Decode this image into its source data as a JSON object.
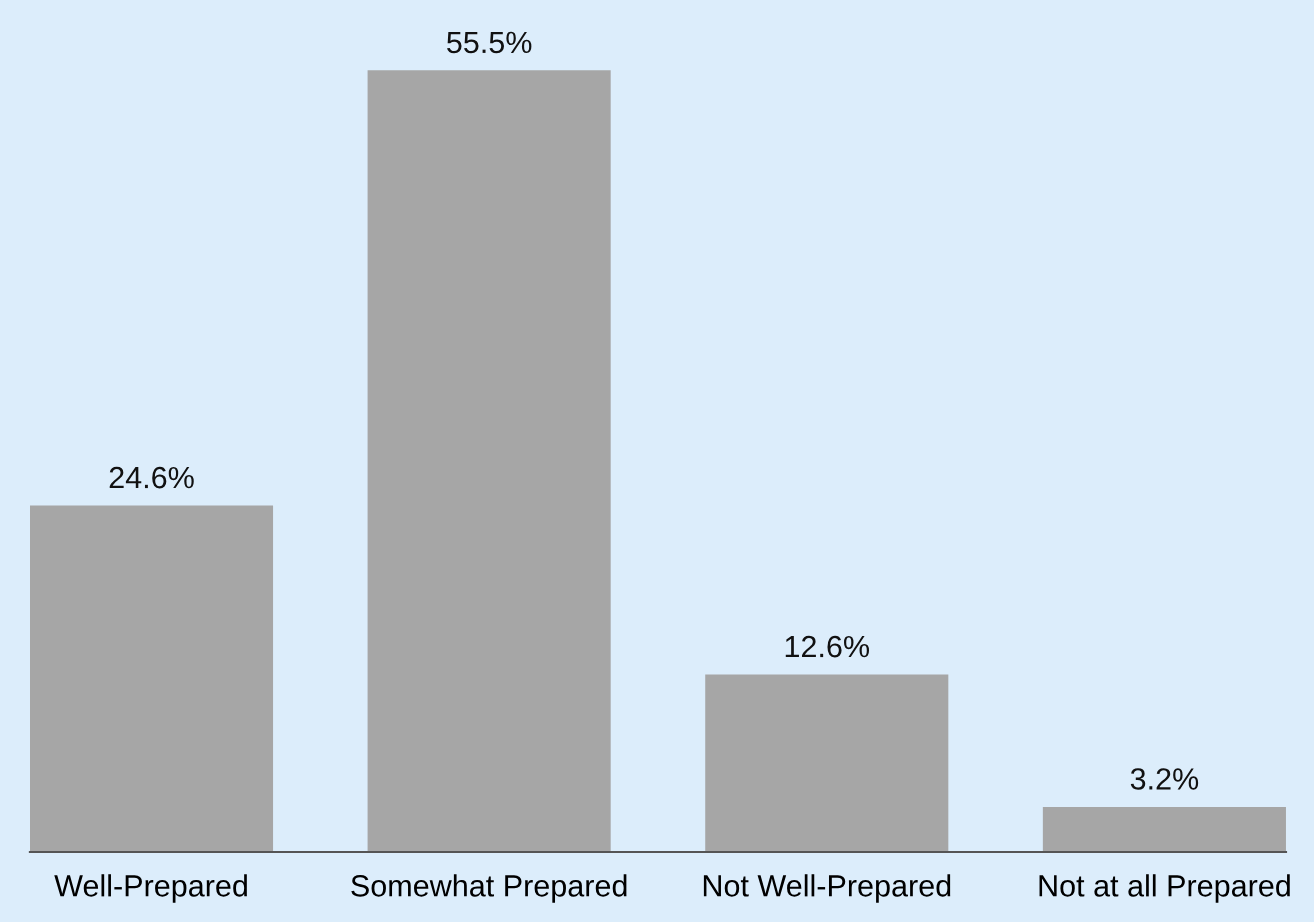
{
  "chart_data": {
    "type": "bar",
    "categories": [
      "Well-Prepared",
      "Somewhat Prepared",
      "Not Well-Prepared",
      "Not at all Prepared"
    ],
    "values": [
      24.6,
      55.5,
      12.6,
      3.2
    ],
    "value_labels": [
      "24.6%",
      "55.5%",
      "12.6%",
      "3.2%"
    ],
    "color": "#a6a6a6",
    "grid": false,
    "legend": false
  }
}
